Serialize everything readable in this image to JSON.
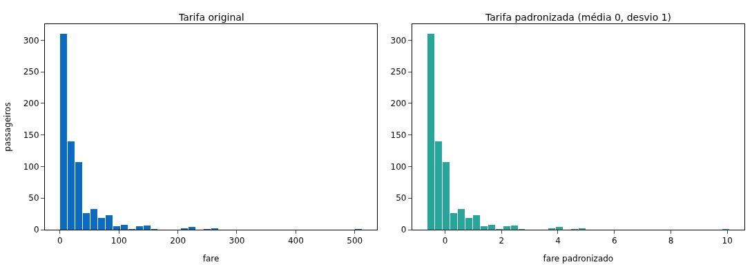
{
  "chart_data": [
    {
      "type": "histogram",
      "title": "Tarifa original",
      "xlabel": "fare",
      "ylabel": "passageiros",
      "color": "#0b6bc2",
      "bins": [
        0,
        12.81,
        25.62,
        38.42,
        51.23,
        64.04,
        76.85,
        89.66,
        102.47,
        115.27,
        128.08,
        140.89,
        153.7,
        166.51,
        179.32,
        192.12,
        204.93,
        217.74,
        230.55,
        243.36,
        256.17,
        268.97,
        281.78,
        294.59,
        307.4,
        320.21,
        333.01,
        345.82,
        358.63,
        371.44,
        384.25,
        397.06,
        409.86,
        422.67,
        435.48,
        448.29,
        461.1,
        473.91,
        486.71,
        499.52,
        512.33
      ],
      "values": [
        310,
        140,
        107,
        26,
        33,
        19,
        23,
        5,
        8,
        1,
        6,
        7,
        1,
        0,
        0,
        0,
        2,
        4,
        0,
        1,
        2,
        0,
        0,
        0,
        0,
        0,
        0,
        0,
        0,
        0,
        0,
        0,
        0,
        0,
        0,
        0,
        0,
        0,
        0,
        1
      ],
      "xlim": [
        -25.6,
        538
      ],
      "xticks": [
        0,
        100,
        200,
        300,
        400,
        500
      ],
      "ylim": [
        0,
        325.5
      ],
      "yticks": [
        0,
        50,
        100,
        150,
        200,
        250,
        300
      ]
    },
    {
      "type": "histogram",
      "title": "Tarifa padronizada (média 0, desvio 1)",
      "xlabel": "fare padronizado",
      "color": "#26a69a",
      "bins": [
        -0.63,
        -0.3625,
        -0.095,
        0.1725,
        0.44,
        0.7075,
        0.975,
        1.2425,
        1.51,
        1.7775,
        2.045,
        2.3125,
        2.58,
        2.8475,
        3.115,
        3.3825,
        3.65,
        3.9175,
        4.185,
        4.4525,
        4.72,
        4.9875,
        5.255,
        5.5225,
        5.79,
        6.0575,
        6.325,
        6.5925,
        6.86,
        7.1275,
        7.395,
        7.6625,
        7.93,
        8.1975,
        8.465,
        8.7325,
        9.0,
        9.2675,
        9.535,
        9.8025,
        10.07
      ],
      "values": [
        310,
        140,
        107,
        26,
        33,
        19,
        23,
        5,
        8,
        1,
        6,
        7,
        1,
        0,
        0,
        0,
        2,
        4,
        0,
        1,
        2,
        0,
        0,
        0,
        0,
        0,
        0,
        0,
        0,
        0,
        0,
        0,
        0,
        0,
        0,
        0,
        0,
        0,
        0,
        1
      ],
      "xlim": [
        -1.165,
        10.605
      ],
      "xticks": [
        0,
        2,
        4,
        6,
        8,
        10
      ],
      "ylim": [
        0,
        325.5
      ],
      "yticks": [
        0,
        50,
        100,
        150,
        200,
        250,
        300
      ]
    }
  ]
}
